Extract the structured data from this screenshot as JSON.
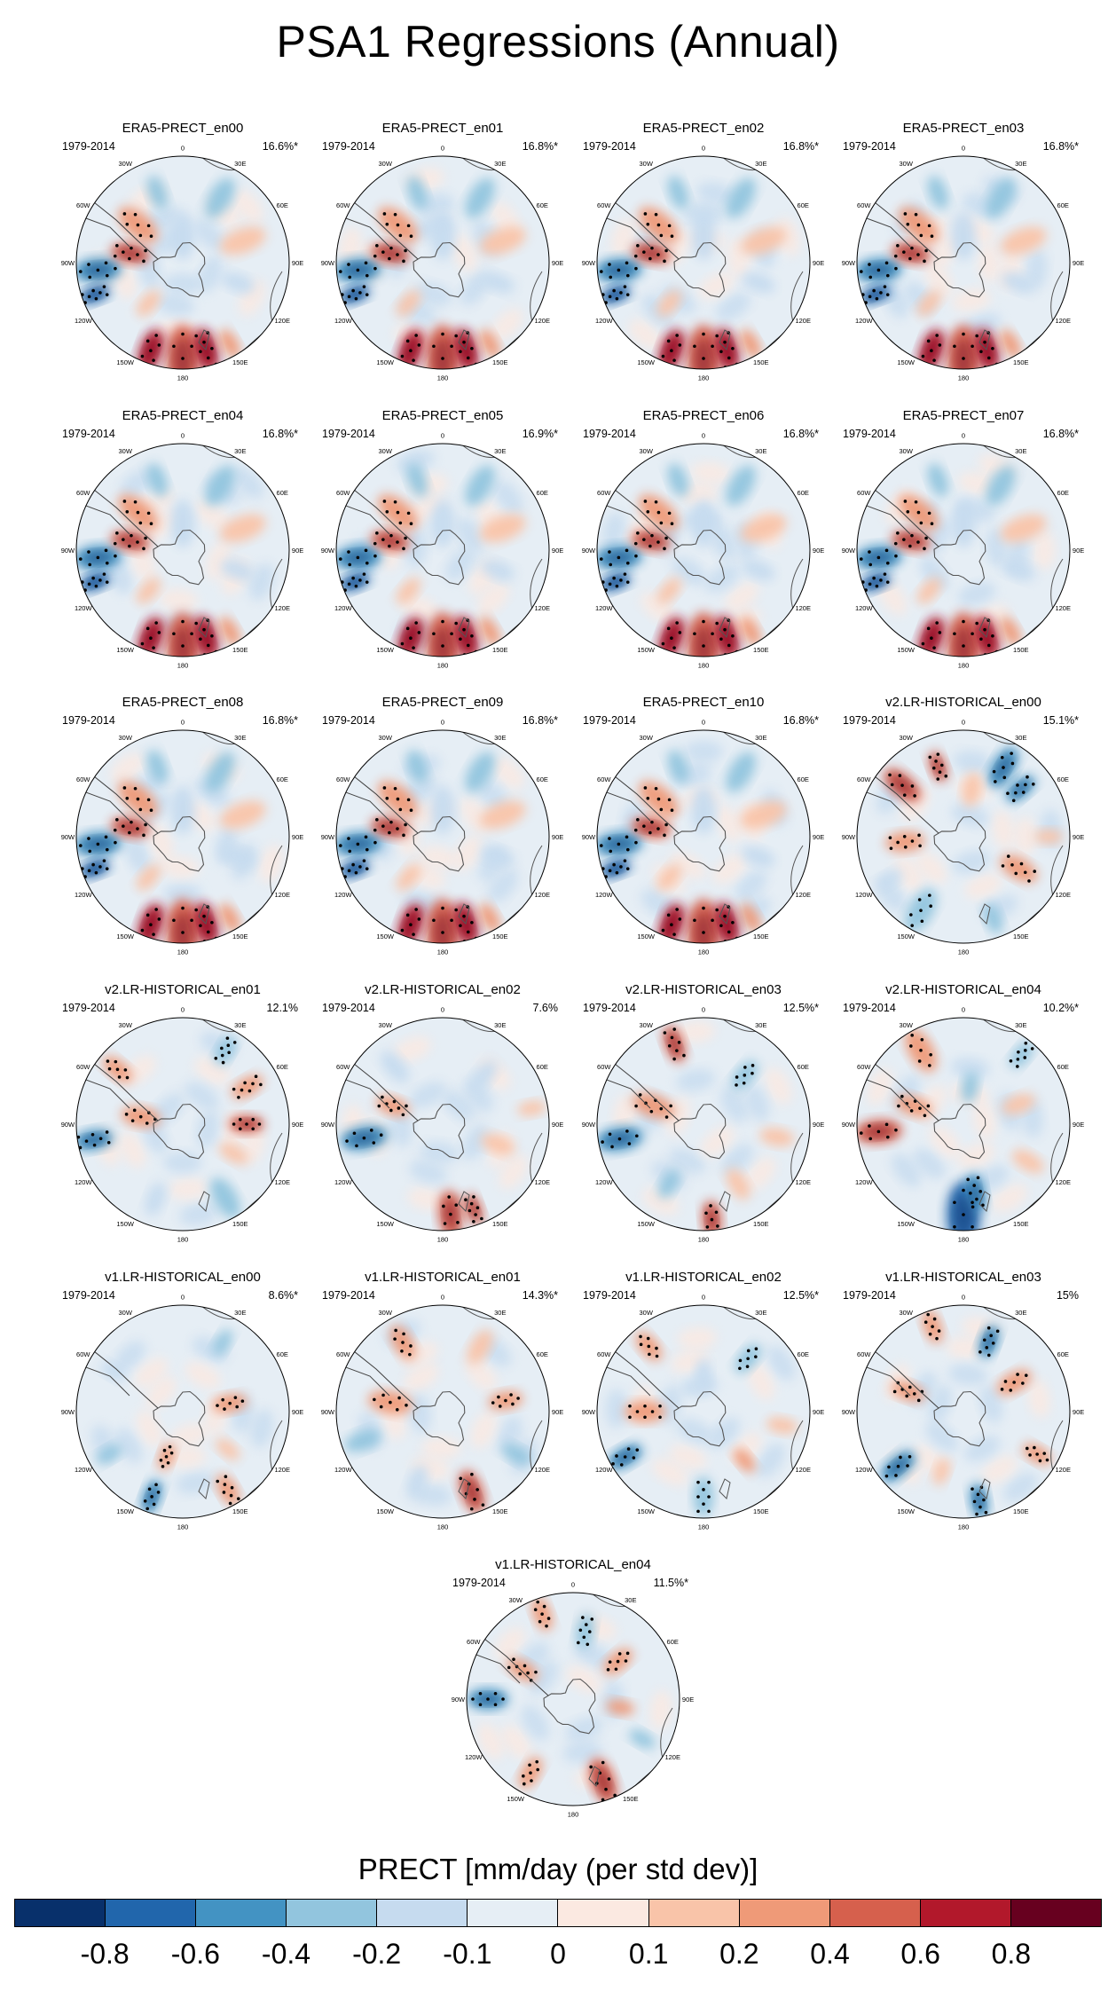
{
  "title": "PSA1 Regressions (Annual)",
  "period": "1979-2014",
  "longitude_labels": [
    "0",
    "30E",
    "60E",
    "90E",
    "120E",
    "150E",
    "180",
    "150W",
    "120W",
    "90W",
    "60W",
    "30W"
  ],
  "panels": [
    {
      "title": "ERA5-PRECT_en00",
      "pct": "16.6%*",
      "pattern": "era5"
    },
    {
      "title": "ERA5-PRECT_en01",
      "pct": "16.8%*",
      "pattern": "era5"
    },
    {
      "title": "ERA5-PRECT_en02",
      "pct": "16.8%*",
      "pattern": "era5"
    },
    {
      "title": "ERA5-PRECT_en03",
      "pct": "16.8%*",
      "pattern": "era5"
    },
    {
      "title": "ERA5-PRECT_en04",
      "pct": "16.8%*",
      "pattern": "era5"
    },
    {
      "title": "ERA5-PRECT_en05",
      "pct": "16.9%*",
      "pattern": "era5"
    },
    {
      "title": "ERA5-PRECT_en06",
      "pct": "16.8%*",
      "pattern": "era5"
    },
    {
      "title": "ERA5-PRECT_en07",
      "pct": "16.8%*",
      "pattern": "era5"
    },
    {
      "title": "ERA5-PRECT_en08",
      "pct": "16.8%*",
      "pattern": "era5"
    },
    {
      "title": "ERA5-PRECT_en09",
      "pct": "16.8%*",
      "pattern": "era5"
    },
    {
      "title": "ERA5-PRECT_en10",
      "pct": "16.8%*",
      "pattern": "era5"
    },
    {
      "title": "v2.LR-HISTORICAL_en00",
      "pct": "15.1%*",
      "pattern": "v2a"
    },
    {
      "title": "v2.LR-HISTORICAL_en01",
      "pct": "12.1%",
      "pattern": "v2b"
    },
    {
      "title": "v2.LR-HISTORICAL_en02",
      "pct": "7.6%",
      "pattern": "v2c"
    },
    {
      "title": "v2.LR-HISTORICAL_en03",
      "pct": "12.5%*",
      "pattern": "v2d"
    },
    {
      "title": "v2.LR-HISTORICAL_en04",
      "pct": "10.2%*",
      "pattern": "v2e"
    },
    {
      "title": "v1.LR-HISTORICAL_en00",
      "pct": "8.6%*",
      "pattern": "v1a"
    },
    {
      "title": "v1.LR-HISTORICAL_en01",
      "pct": "14.3%*",
      "pattern": "v1b"
    },
    {
      "title": "v1.LR-HISTORICAL_en02",
      "pct": "12.5%*",
      "pattern": "v1c"
    },
    {
      "title": "v1.LR-HISTORICAL_en03",
      "pct": "15%",
      "pattern": "v1d"
    },
    {
      "title": "v1.LR-HISTORICAL_en04",
      "pct": "11.5%*",
      "pattern": "v1e"
    }
  ],
  "colorbar": {
    "title": "PRECT [mm/day (per std dev)]",
    "colors": [
      "#08306b",
      "#2166ac",
      "#4393c3",
      "#92c5de",
      "#c6dbef",
      "#e6eef5",
      "#fbe9e1",
      "#f9c4a9",
      "#ef9a78",
      "#d6604d",
      "#b2182b",
      "#67001f"
    ],
    "tick_labels": [
      "-0.8",
      "-0.6",
      "-0.4",
      "-0.2",
      "-0.1",
      "0",
      "0.1",
      "0.2",
      "0.4",
      "0.6",
      "0.8"
    ]
  }
}
